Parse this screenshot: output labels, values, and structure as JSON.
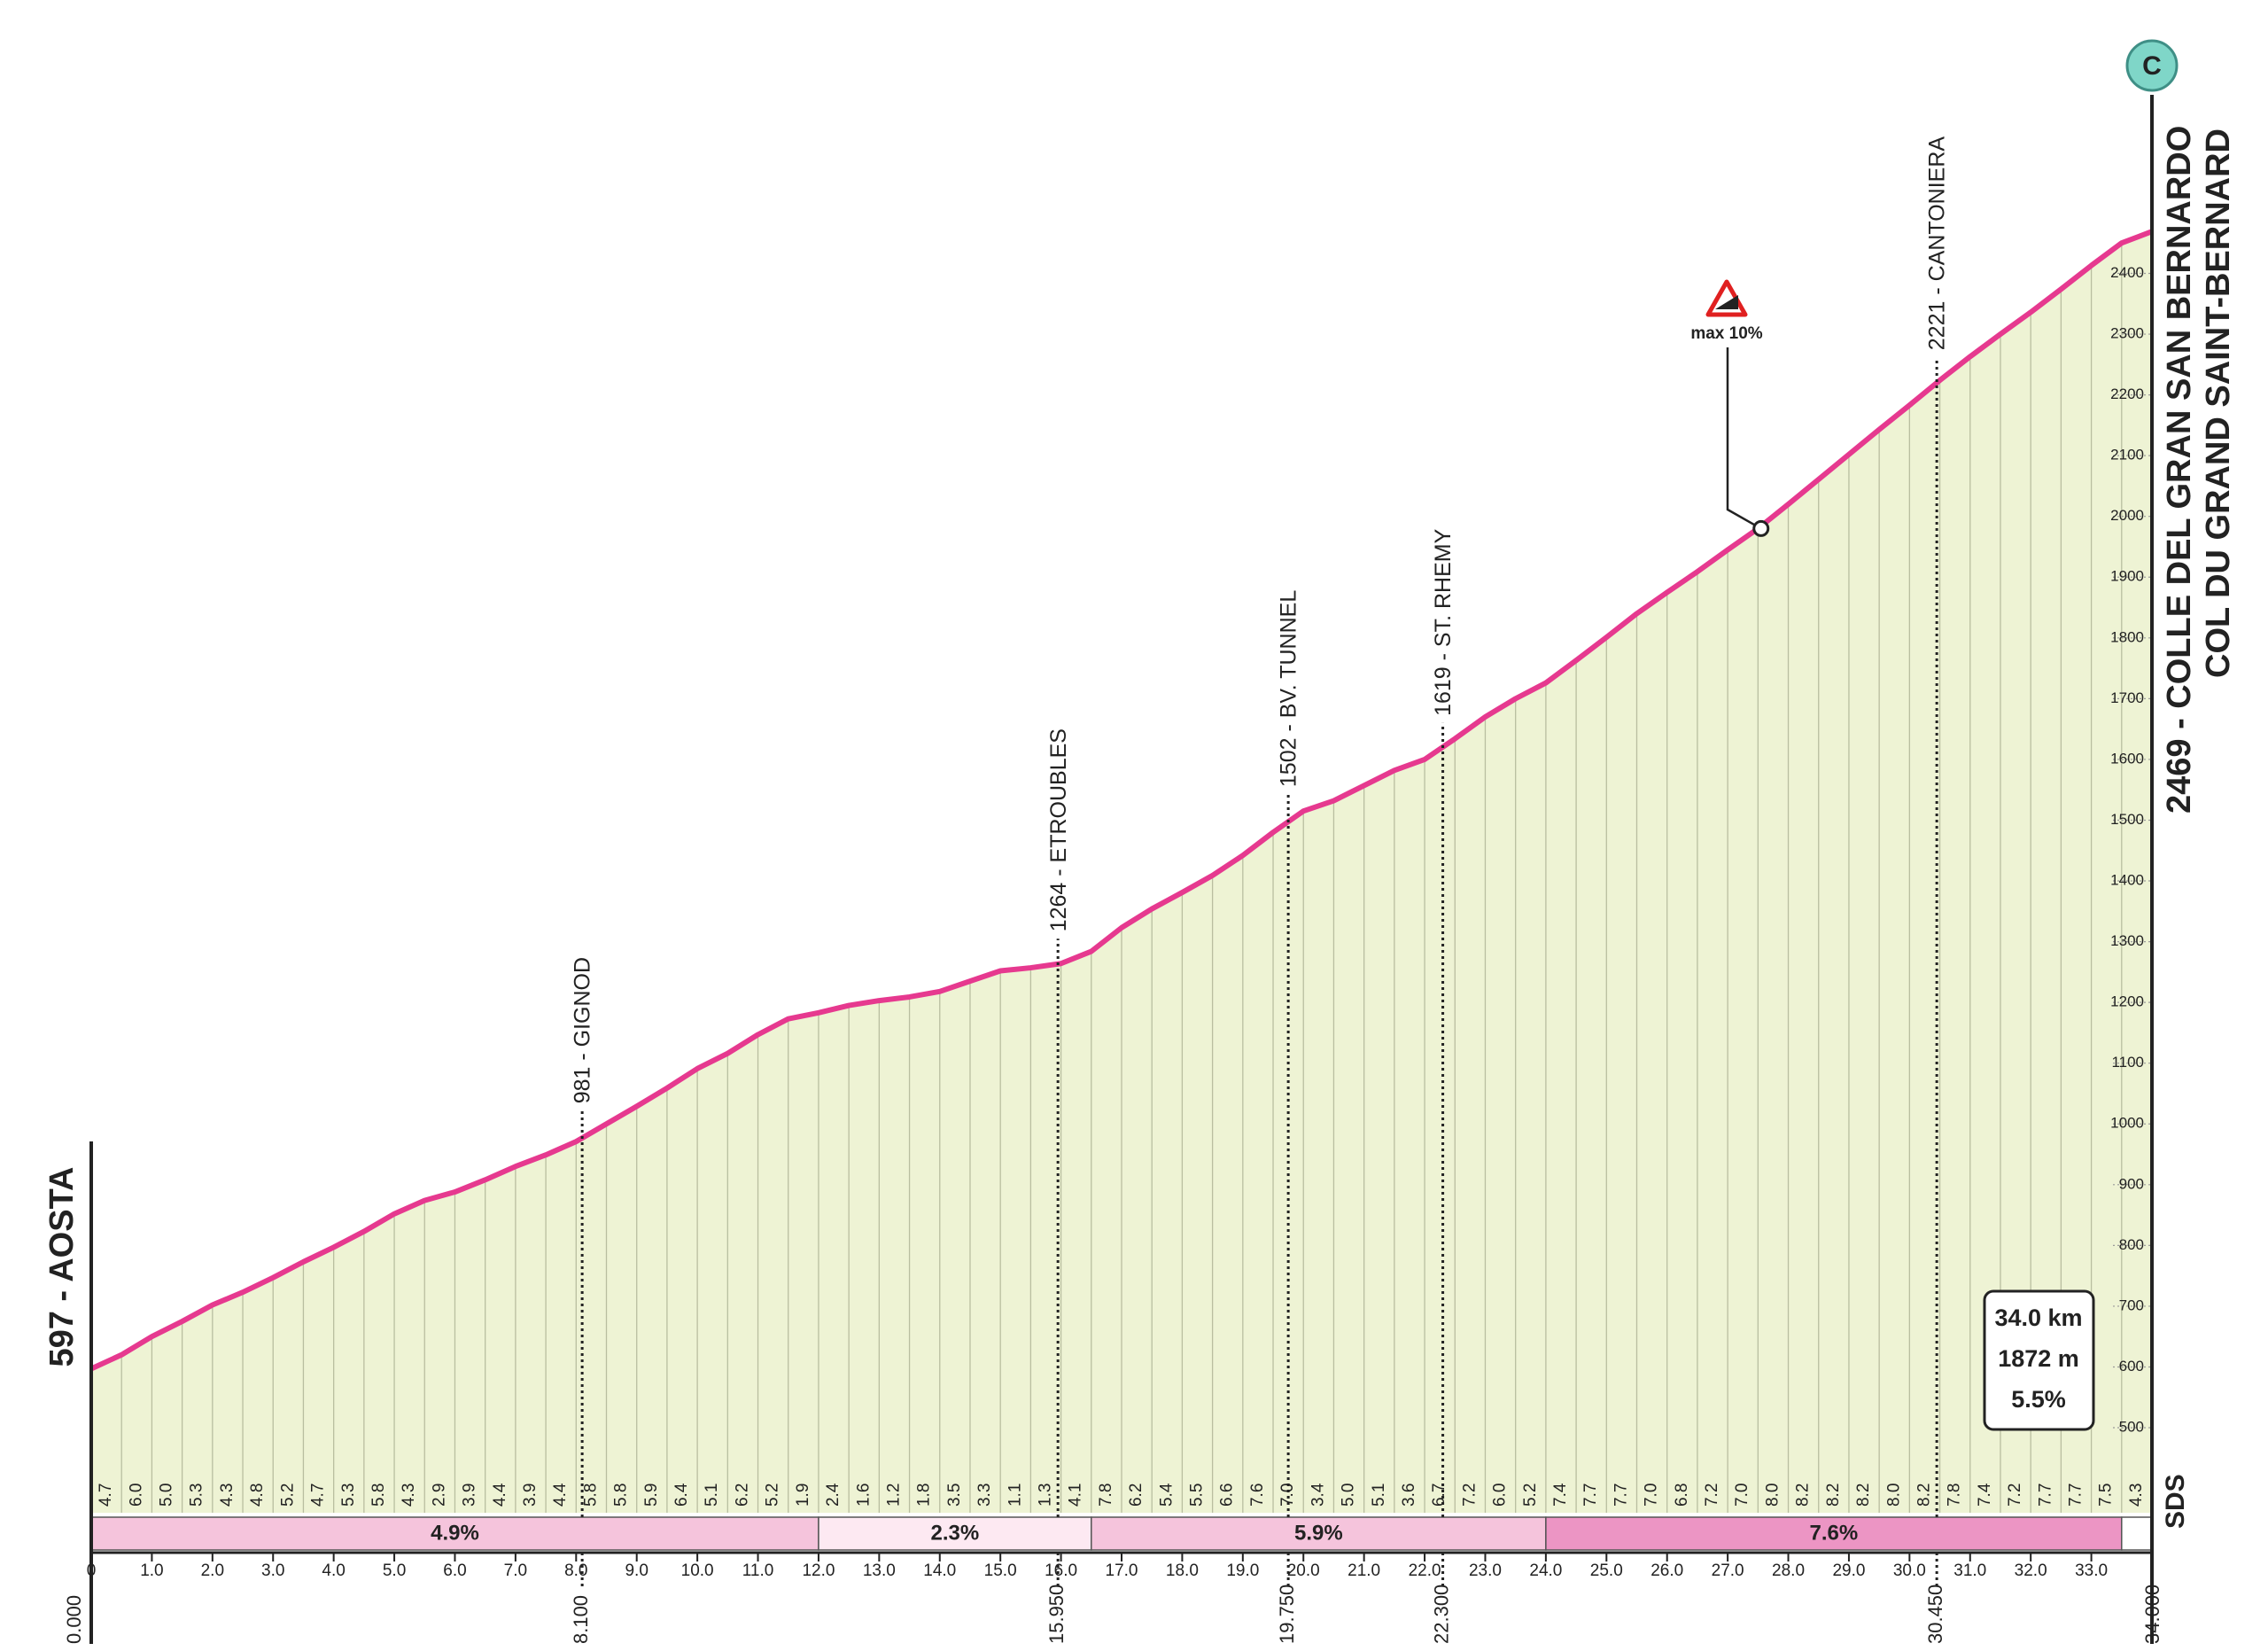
{
  "chart_data": {
    "type": "area",
    "category": "C",
    "logo": "SDS",
    "start": {
      "label": "597 - AOSTA",
      "elevation": 597,
      "km": 0,
      "km_label": "0.000"
    },
    "finish": {
      "label": "2469 - COLLE DEL GRAN SAN BERNARDO",
      "label2": "COL DU GRAND SAINT-BERNARD",
      "elevation": 2469,
      "km": 34,
      "km_label": "34.000"
    },
    "color": "#e6398f",
    "fill": "#eef3d4",
    "x": [
      0,
      0.5,
      1,
      1.5,
      2,
      2.5,
      3,
      3.5,
      4,
      4.5,
      5,
      5.5,
      6,
      6.5,
      7,
      7.5,
      8,
      8.5,
      9,
      9.5,
      10,
      10.5,
      11,
      11.5,
      12,
      12.5,
      13,
      13.5,
      14,
      14.5,
      15,
      15.5,
      16,
      16.5,
      17,
      17.5,
      18,
      18.5,
      19,
      19.5,
      20,
      20.5,
      21,
      21.5,
      22,
      22.5,
      23,
      23.5,
      24,
      24.5,
      25,
      25.5,
      26,
      26.5,
      27,
      27.5,
      28,
      28.5,
      29,
      29.5,
      30,
      30.5,
      31,
      31.5,
      32,
      32.5,
      33,
      33.5,
      34
    ],
    "values": [
      597,
      620,
      650,
      675,
      702,
      723,
      747,
      773,
      797,
      823,
      852,
      874,
      888,
      908,
      930,
      949,
      971,
      1000,
      1029,
      1059,
      1091,
      1116,
      1147,
      1173,
      1183,
      1195,
      1203,
      1209,
      1218,
      1235,
      1252,
      1257,
      1264,
      1284,
      1323,
      1354,
      1381,
      1409,
      1442,
      1480,
      1515,
      1532,
      1557,
      1582,
      1600,
      1634,
      1670,
      1700,
      1726,
      1763,
      1801,
      1840,
      1875,
      1909,
      1945,
      1980,
      2020,
      2061,
      2102,
      2143,
      2183,
      2224,
      2263,
      2300,
      2336,
      2374,
      2413,
      2450,
      2469
    ],
    "segments": {
      "values": [
        4.7,
        6,
        5,
        5.3,
        4.3,
        4.8,
        5.2,
        4.7,
        5.3,
        5.8,
        4.3,
        2.9,
        3.9,
        4.4,
        3.9,
        4.4,
        5.8,
        5.8,
        5.9,
        6.4,
        5.1,
        6.2,
        5.2,
        1.9,
        2.4,
        1.6,
        1.2,
        1.8,
        3.5,
        3.3,
        1.1,
        1.3,
        4.1,
        7.8,
        6.2,
        5.4,
        5.5,
        6.6,
        7.6,
        7,
        3.4,
        5,
        5.1,
        3.6,
        6.7,
        7.2,
        6,
        5.2,
        7.4,
        7.7,
        7.7,
        7,
        6.8,
        7.2,
        7,
        8,
        8.2,
        8.2,
        8.2,
        8,
        8.2,
        7.8,
        7.4,
        7.2,
        7.7,
        7.7,
        7.5,
        4.3
      ],
      "value_labels": [
        "4.7",
        "6.0",
        "5.0",
        "5.3",
        "4.3",
        "4.8",
        "5.2",
        "4.7",
        "5.3",
        "5.8",
        "4.3",
        "2.9",
        "3.9",
        "4.4",
        "3.9",
        "4.4",
        "5.8",
        "5.8",
        "5.9",
        "6.4",
        "5.1",
        "6.2",
        "5.2",
        "1.9",
        "2.4",
        "1.6",
        "1.2",
        "1.8",
        "3.5",
        "3.3",
        "1.1",
        "1.3",
        "4.1",
        "7.8",
        "6.2",
        "5.4",
        "5.5",
        "6.6",
        "7.6",
        "7.0",
        "3.4",
        "5.0",
        "5.1",
        "3.6",
        "6.7",
        "7.2",
        "6.0",
        "5.2",
        "7.4",
        "7.7",
        "7.7",
        "7.0",
        "6.8",
        "7.2",
        "7.0",
        "8.0",
        "8.2",
        "8.2",
        "8.2",
        "8.0",
        "8.2",
        "7.8",
        "7.4",
        "7.2",
        "7.7",
        "7.7",
        "7.5",
        "4.3"
      ]
    },
    "bands": [
      {
        "from": 0,
        "to": 12,
        "value": 4.9,
        "label": "4.9%",
        "color": "#f5c4dc"
      },
      {
        "from": 12,
        "to": 16.5,
        "value": 2.3,
        "label": "2.3%",
        "color": "#fde9f2"
      },
      {
        "from": 16.5,
        "to": 24,
        "value": 5.9,
        "label": "5.9%",
        "color": "#f5c4dc"
      },
      {
        "from": 24,
        "to": 33.5,
        "value": 7.6,
        "label": "7.6%",
        "color": "#ec95c4"
      },
      {
        "from": 33.5,
        "to": 34,
        "color": "#ffffff"
      }
    ],
    "waypoints": [
      {
        "label": "981 - GIGNOD",
        "elevation": 981,
        "km": 8.1,
        "km_label": "8.100"
      },
      {
        "label": "1264 - ETROUBLES",
        "elevation": 1264,
        "km": 15.95,
        "km_label": "15.950"
      },
      {
        "label": "1502 - BV. TUNNEL",
        "elevation": 1502,
        "km": 19.75,
        "km_label": "19.750"
      },
      {
        "label": "1619 - ST. RHEMY",
        "elevation": 1619,
        "km": 22.3,
        "km_label": "22.300"
      },
      {
        "label": "2221 - CANTONIERA",
        "elevation": 2221,
        "km": 30.45,
        "km_label": "30.450"
      }
    ],
    "max_gradient": {
      "label": "max 10%",
      "km": 27.55,
      "elevation": 1980
    },
    "summary": [
      "34.0 km",
      "1872 m",
      "5.5%"
    ],
    "xlim": [
      0,
      34
    ],
    "ylim": [
      360,
      2850
    ],
    "xticks": [
      0,
      {
        "value": 1,
        "label": "1.0"
      },
      {
        "value": 2,
        "label": "2.0"
      },
      {
        "value": 3,
        "label": "3.0"
      },
      {
        "value": 4,
        "label": "4.0"
      },
      {
        "value": 5,
        "label": "5.0"
      },
      {
        "value": 6,
        "label": "6.0"
      },
      {
        "value": 7,
        "label": "7.0"
      },
      {
        "value": 8,
        "label": "8.0"
      },
      {
        "value": 9,
        "label": "9.0"
      },
      {
        "value": 10,
        "label": "10.0"
      },
      {
        "value": 11,
        "label": "11.0"
      },
      {
        "value": 12,
        "label": "12.0"
      },
      {
        "value": 13,
        "label": "13.0"
      },
      {
        "value": 14,
        "label": "14.0"
      },
      {
        "value": 15,
        "label": "15.0"
      },
      {
        "value": 16,
        "label": "16.0"
      },
      {
        "value": 17,
        "label": "17.0"
      },
      {
        "value": 18,
        "label": "18.0"
      },
      {
        "value": 19,
        "label": "19.0"
      },
      {
        "value": 20,
        "label": "20.0"
      },
      {
        "value": 21,
        "label": "21.0"
      },
      {
        "value": 22,
        "label": "22.0"
      },
      {
        "value": 23,
        "label": "23.0"
      },
      {
        "value": 24,
        "label": "24.0"
      },
      {
        "value": 25,
        "label": "25.0"
      },
      {
        "value": 26,
        "label": "26.0"
      },
      {
        "value": 27,
        "label": "27.0"
      },
      {
        "value": 28,
        "label": "28.0"
      },
      {
        "value": 29,
        "label": "29.0"
      },
      {
        "value": 30,
        "label": "30.0"
      },
      {
        "value": 31,
        "label": "31.0"
      },
      {
        "value": 32,
        "label": "32.0"
      },
      {
        "value": 33,
        "label": "33.0"
      }
    ],
    "yticks": [
      500,
      600,
      700,
      800,
      900,
      1000,
      1100,
      1200,
      1300,
      1400,
      1500,
      1600,
      1700,
      1800,
      1900,
      2000,
      2100,
      2200,
      2300,
      2400
    ]
  }
}
